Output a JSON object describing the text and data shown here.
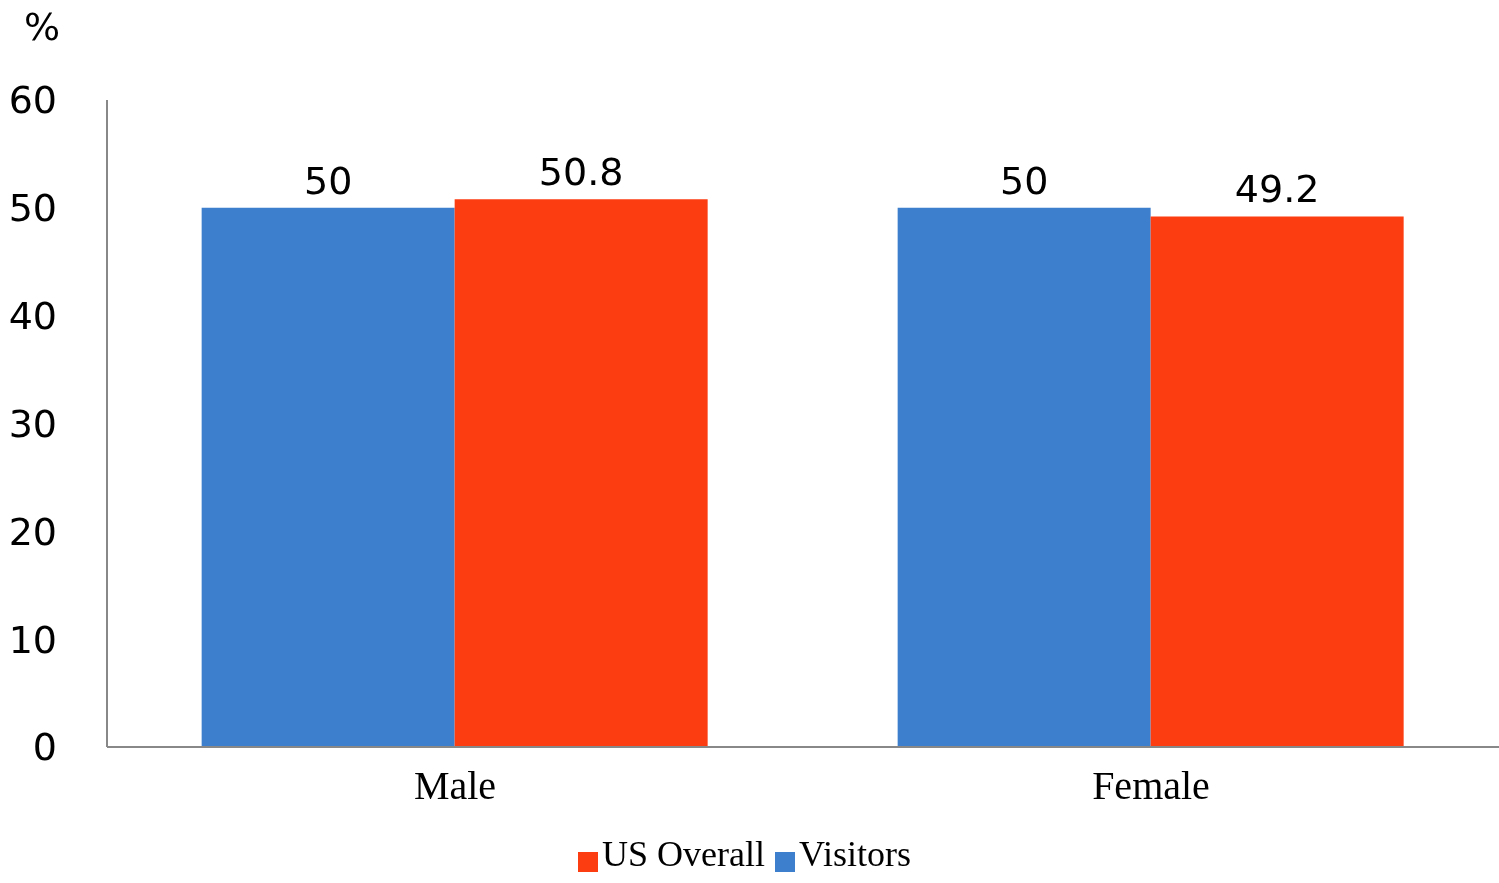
{
  "chart_data": {
    "type": "bar",
    "ylabel": "%",
    "categories": [
      "Male",
      "Female"
    ],
    "series": [
      {
        "name": "Visitors",
        "color": "#3e7fcd",
        "values": [
          50,
          50
        ]
      },
      {
        "name": "US Overall",
        "color": "#fc3d12",
        "values": [
          50.8,
          49.2
        ]
      }
    ],
    "ylim": [
      0,
      60
    ],
    "yticks": [
      0,
      10,
      20,
      30,
      40,
      50,
      60
    ],
    "grid": false,
    "legend": "bottom",
    "data_labels": true
  }
}
